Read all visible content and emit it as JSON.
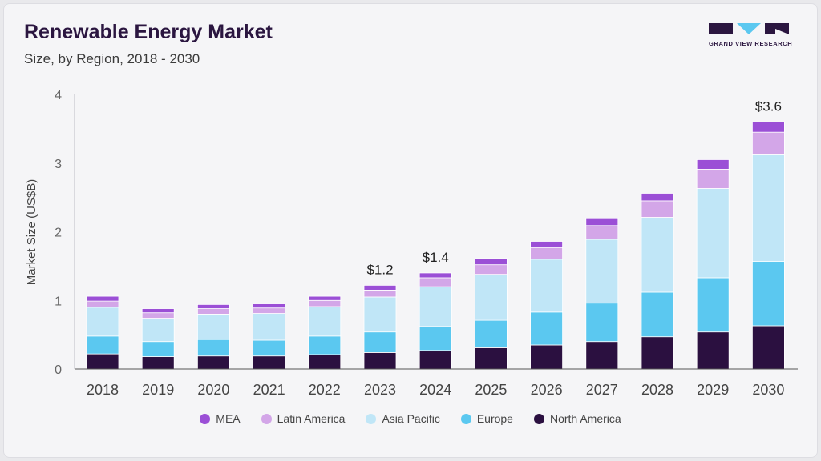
{
  "header": {
    "title": "Renewable Energy Market",
    "subtitle": "Size, by Region, 2018 - 2030",
    "brand": "GRAND VIEW RESEARCH"
  },
  "colors": {
    "MEA": "#9b4fd6",
    "Latin America": "#d3a6e8",
    "Asia Pacific": "#c0e6f7",
    "Europe": "#5bc8f0",
    "North America": "#2b1040"
  },
  "chart_data": {
    "type": "bar",
    "stacked": true,
    "ylabel": "Market Size (US$B)",
    "xlabel": "",
    "ylim": [
      0,
      4
    ],
    "yticks": [
      "0",
      "1",
      "2",
      "3",
      "4"
    ],
    "categories": [
      "2018",
      "2019",
      "2020",
      "2021",
      "2022",
      "2023",
      "2024",
      "2025",
      "2026",
      "2027",
      "2028",
      "2029",
      "2030"
    ],
    "series": [
      {
        "name": "North America",
        "values": [
          0.22,
          0.18,
          0.19,
          0.19,
          0.21,
          0.24,
          0.27,
          0.31,
          0.35,
          0.4,
          0.47,
          0.54,
          0.63
        ]
      },
      {
        "name": "Europe",
        "values": [
          0.26,
          0.22,
          0.24,
          0.23,
          0.27,
          0.3,
          0.35,
          0.4,
          0.48,
          0.56,
          0.65,
          0.79,
          0.94
        ]
      },
      {
        "name": "Asia Pacific",
        "values": [
          0.42,
          0.34,
          0.37,
          0.39,
          0.43,
          0.51,
          0.58,
          0.67,
          0.77,
          0.93,
          1.09,
          1.3,
          1.55
        ]
      },
      {
        "name": "Latin America",
        "values": [
          0.09,
          0.08,
          0.08,
          0.08,
          0.09,
          0.1,
          0.13,
          0.14,
          0.17,
          0.2,
          0.24,
          0.28,
          0.33
        ]
      },
      {
        "name": "MEA",
        "values": [
          0.07,
          0.06,
          0.06,
          0.06,
          0.06,
          0.07,
          0.07,
          0.09,
          0.09,
          0.1,
          0.11,
          0.14,
          0.15
        ]
      }
    ],
    "annotations": [
      {
        "category": "2023",
        "text": "$1.2"
      },
      {
        "category": "2024",
        "text": "$1.4"
      },
      {
        "category": "2030",
        "text": "$3.6"
      }
    ],
    "legend": {
      "position": "bottom",
      "items": [
        "MEA",
        "Latin America",
        "Asia Pacific",
        "Europe",
        "North America"
      ]
    }
  }
}
